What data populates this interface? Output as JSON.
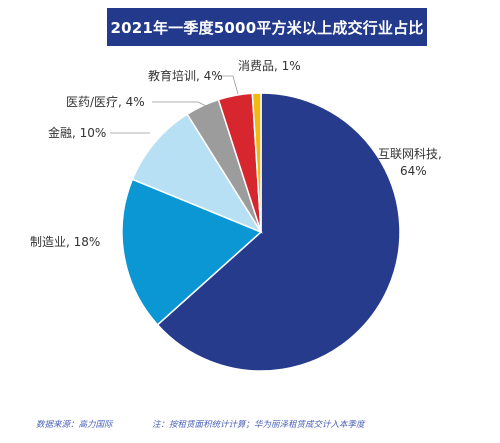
{
  "chart_data": {
    "type": "pie",
    "title": "2021年一季度5000平方米以上成交行业占比",
    "slices": [
      {
        "label": "互联网科技",
        "value": 64,
        "value_text": "64%",
        "color": "#263b8c"
      },
      {
        "label": "制造业",
        "value": 18,
        "value_text": "18%",
        "color": "#0b97d4"
      },
      {
        "label": "金融",
        "value": 10,
        "value_text": "10%",
        "color": "#b7e0f4"
      },
      {
        "label": "医药/医疗",
        "value": 4,
        "value_text": "4%",
        "color": "#9c9c9c"
      },
      {
        "label": "教育培训",
        "value": 4,
        "value_text": "4%",
        "color": "#d8262e"
      },
      {
        "label": "消费品",
        "value": 1,
        "value_text": "1%",
        "color": "#f1b80f"
      }
    ],
    "legend": "none"
  },
  "footer": {
    "source": "数据来源：高力国际",
    "note": "注：按租赁面积统计计算；华为丽泽租赁成交计入本季度"
  }
}
